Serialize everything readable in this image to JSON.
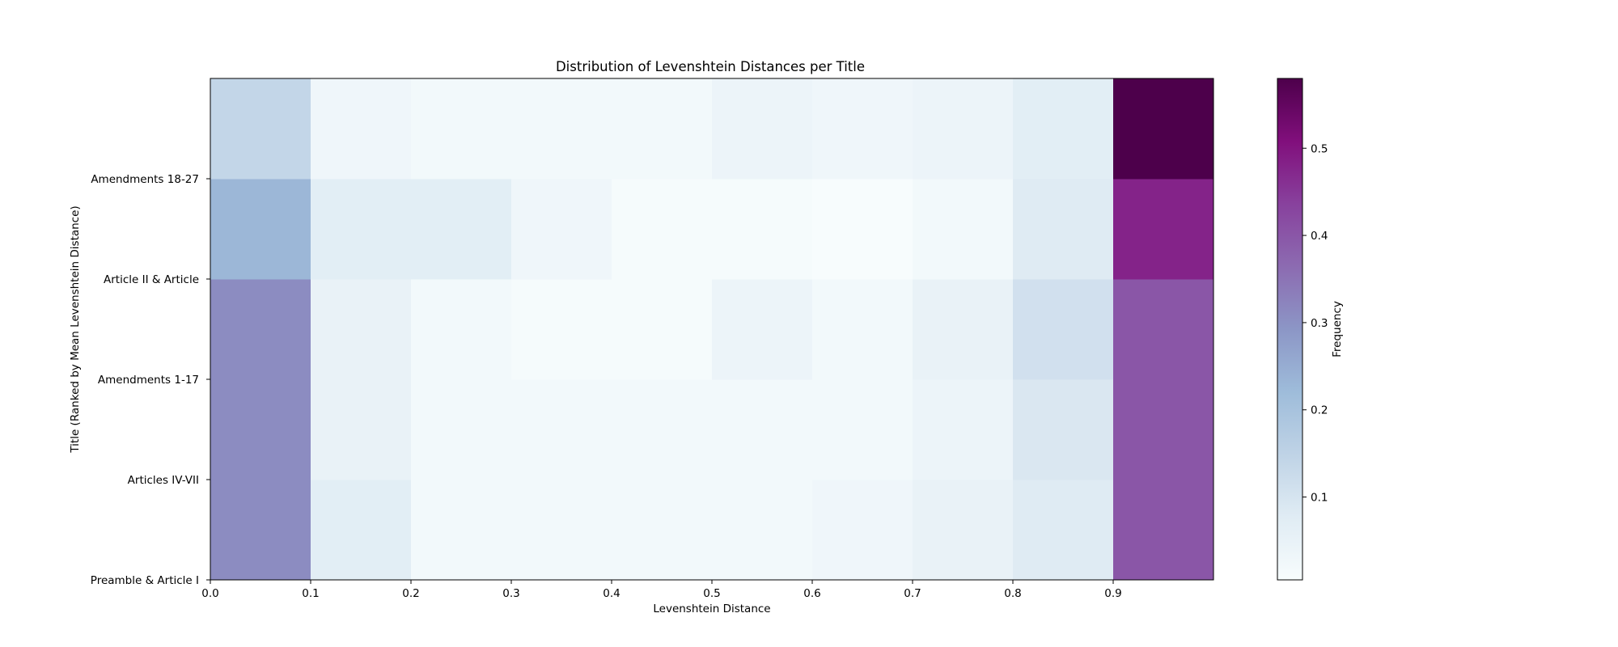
{
  "chart_data": {
    "type": "heatmap",
    "title": "Distribution of Levenshtein Distances per Title",
    "xlabel": "Levenshtein Distance",
    "ylabel": "Title (Ranked by Mean Levenshtein Distance)",
    "x_bins": [
      0.0,
      0.1,
      0.2,
      0.3,
      0.4,
      0.5,
      0.6,
      0.7,
      0.8,
      0.9,
      1.0
    ],
    "x_tick_labels": [
      "0.0",
      "0.1",
      "0.2",
      "0.3",
      "0.4",
      "0.5",
      "0.6",
      "0.7",
      "0.8",
      "0.9"
    ],
    "y_tick_labels": [
      "Preamble & Article I",
      "Articles IV-VII",
      "Amendments 1-17",
      "Article II & Article",
      "Amendments 18-27"
    ],
    "colorbar": {
      "label": "Frequency",
      "colormap": "BuPu",
      "vmin": 0.005,
      "vmax": 0.58,
      "ticks": [
        0.1,
        0.2,
        0.3,
        0.4,
        0.5
      ],
      "tick_labels": [
        "0.1",
        "0.2",
        "0.3",
        "0.4",
        "0.5"
      ]
    },
    "rows_bottom_to_top": [
      [
        0.31,
        0.07,
        0.02,
        0.02,
        0.02,
        0.02,
        0.03,
        0.05,
        0.08,
        0.4
      ],
      [
        0.31,
        0.05,
        0.02,
        0.02,
        0.02,
        0.02,
        0.02,
        0.04,
        0.09,
        0.4
      ],
      [
        0.31,
        0.05,
        0.02,
        0.01,
        0.01,
        0.04,
        0.02,
        0.05,
        0.11,
        0.4
      ],
      [
        0.23,
        0.07,
        0.07,
        0.03,
        0.01,
        0.01,
        0.005,
        0.02,
        0.08,
        0.48
      ],
      [
        0.14,
        0.03,
        0.02,
        0.02,
        0.02,
        0.04,
        0.03,
        0.04,
        0.07,
        0.58
      ]
    ]
  }
}
